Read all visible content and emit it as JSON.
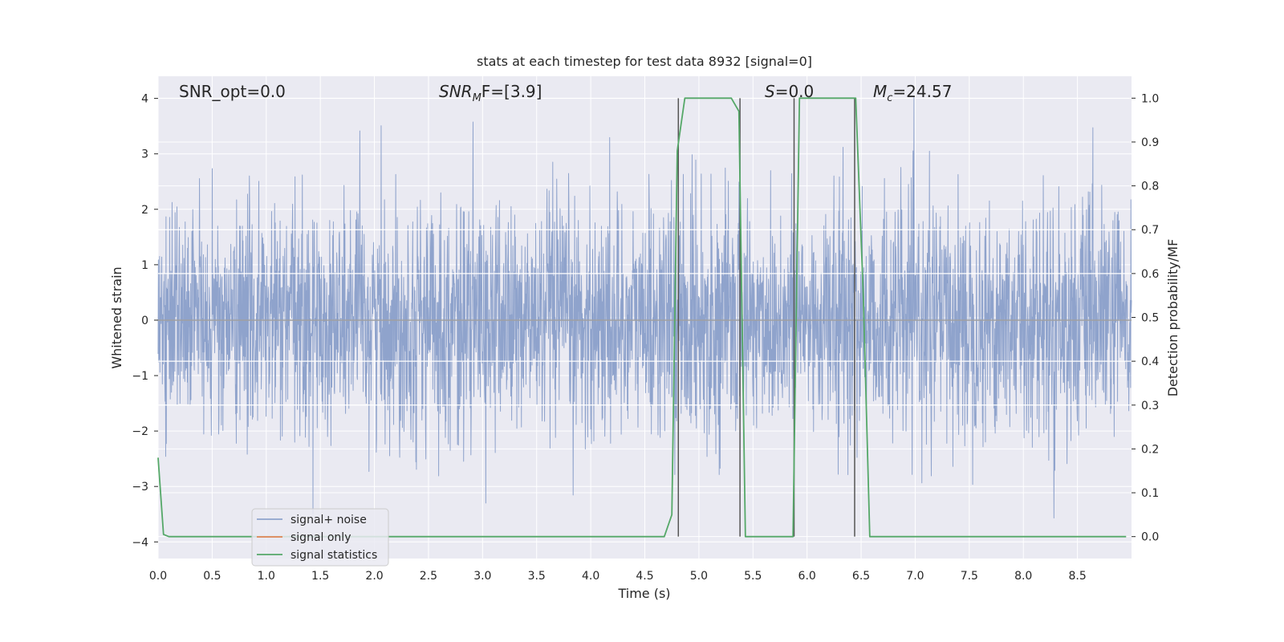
{
  "chart_data": {
    "type": "line",
    "title": "stats at each timestep for test data 8932 [signal=0]",
    "xlabel": "Time (s)",
    "ylabel": "Whitened strain",
    "y2label": "Detection probability/MF",
    "xlim": [
      0.0,
      9.0
    ],
    "ylim": [
      -4.3,
      4.4
    ],
    "y2lim": [
      -0.05,
      1.05
    ],
    "xticks": [
      "0.0",
      "0.5",
      "1.0",
      "1.5",
      "2.0",
      "2.5",
      "3.0",
      "3.5",
      "4.0",
      "4.5",
      "5.0",
      "5.5",
      "6.0",
      "6.5",
      "7.0",
      "7.5",
      "8.0",
      "8.5"
    ],
    "yticks": [
      "4",
      "3",
      "2",
      "1",
      "0",
      "−1",
      "−2",
      "−3",
      "−4"
    ],
    "y2ticks": [
      "1.0",
      "0.9",
      "0.8",
      "0.7",
      "0.6",
      "0.5",
      "0.4",
      "0.3",
      "0.2",
      "0.1",
      "0.0"
    ],
    "grid": true,
    "legend_position": "lower-left",
    "annotations": [
      {
        "id": "snr-opt",
        "text": "SNR_opt=0.0"
      },
      {
        "id": "snr-mf",
        "prefix": "SNR",
        "sub": "M",
        "suffix": "F=[3.9]"
      },
      {
        "id": "s",
        "prefix": "S",
        "suffix": "=0.0"
      },
      {
        "id": "mc",
        "prefix": "M",
        "sub": "c",
        "suffix": "=24.57"
      }
    ],
    "series": [
      {
        "name": "signal+ noise",
        "color": "#8fa3cc",
        "kind": "noise",
        "std": 1.05,
        "tmin": 0.0,
        "tmax": 9.0
      },
      {
        "name": "signal only",
        "color": "#dd8452",
        "x": [
          0.0,
          9.0
        ],
        "y": [
          0.0,
          0.0
        ]
      },
      {
        "name": "signal statistics",
        "color": "#55a868",
        "axis": "right",
        "x": [
          0.0,
          0.05,
          0.1,
          0.2,
          4.68,
          4.75,
          4.8,
          4.87,
          5.3,
          5.37,
          5.43,
          5.87,
          5.93,
          6.45,
          6.52,
          6.58,
          8.95
        ],
        "y": [
          0.18,
          0.005,
          0.0,
          0.0,
          0.0,
          0.05,
          0.88,
          1.0,
          1.0,
          0.97,
          0.0,
          0.0,
          1.0,
          1.0,
          0.55,
          0.0,
          0.0
        ]
      }
    ],
    "vlines": [
      4.81,
      5.38,
      5.88,
      6.44
    ],
    "hlines_right": [
      0.3,
      0.4,
      0.6,
      0.7
    ]
  },
  "colors": {
    "plot_bg": "#eaeaf2",
    "grid": "#ffffff",
    "noise": "#8fa3cc",
    "signal": "#dd8452",
    "stats": "#55a868",
    "vline": "#555555"
  }
}
